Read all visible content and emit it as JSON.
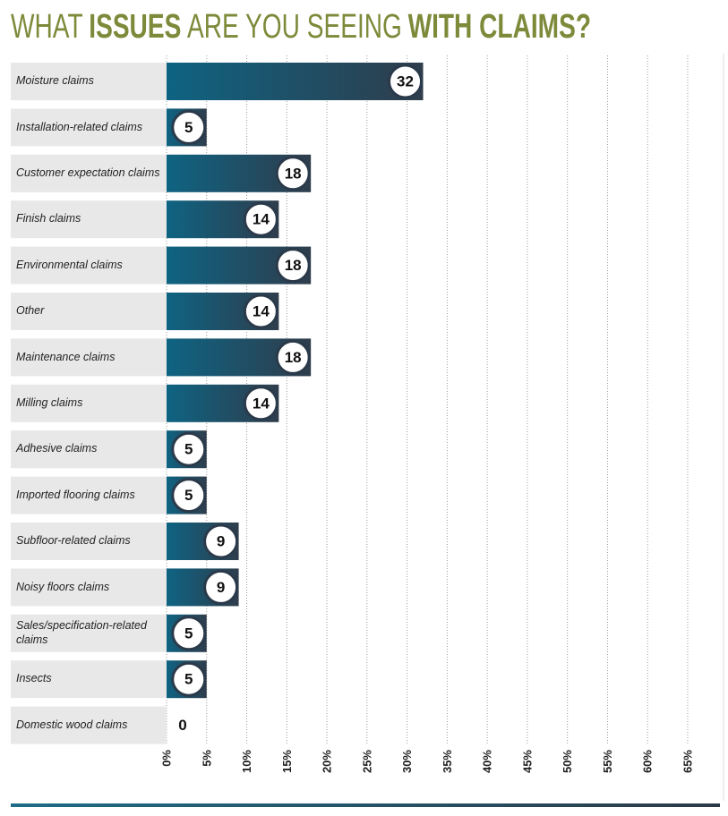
{
  "chart_data": {
    "type": "bar",
    "orientation": "horizontal",
    "title": [
      {
        "text": "WHAT",
        "bold": false
      },
      {
        "text": "ISSUES",
        "bold": true
      },
      {
        "text": "ARE YOU SEEING",
        "bold": false
      },
      {
        "text": "WITH CLAIMS?",
        "bold": true
      }
    ],
    "categories": [
      "Moisture claims",
      "Installation-related claims",
      "Customer expectation claims",
      "Finish claims",
      "Environmental claims",
      "Other",
      "Maintenance claims",
      "Milling claims",
      "Adhesive claims",
      "Imported flooring claims",
      "Subfloor-related claims",
      "Noisy floors claims",
      "Sales/specification-related claims",
      "Insects",
      "Domestic wood claims"
    ],
    "values": [
      32,
      5,
      18,
      14,
      18,
      14,
      18,
      14,
      5,
      5,
      9,
      9,
      5,
      5,
      0
    ],
    "xlim": [
      0,
      65
    ],
    "xticks": [
      {
        "value": 0,
        "label": "0%"
      },
      {
        "value": 5,
        "label": "5%"
      },
      {
        "value": 10,
        "label": "10%"
      },
      {
        "value": 15,
        "label": "15%"
      },
      {
        "value": 20,
        "label": "20%"
      },
      {
        "value": 25,
        "label": "25%"
      },
      {
        "value": 30,
        "label": "30%"
      },
      {
        "value": 35,
        "label": "35%"
      },
      {
        "value": 40,
        "label": "40%"
      },
      {
        "value": 45,
        "label": "45%"
      },
      {
        "value": 50,
        "label": "50%"
      },
      {
        "value": 55,
        "label": "55%"
      },
      {
        "value": 60,
        "label": "60%"
      },
      {
        "value": 65,
        "label": "65%"
      }
    ],
    "grid": true,
    "color": "#0f6280"
  }
}
